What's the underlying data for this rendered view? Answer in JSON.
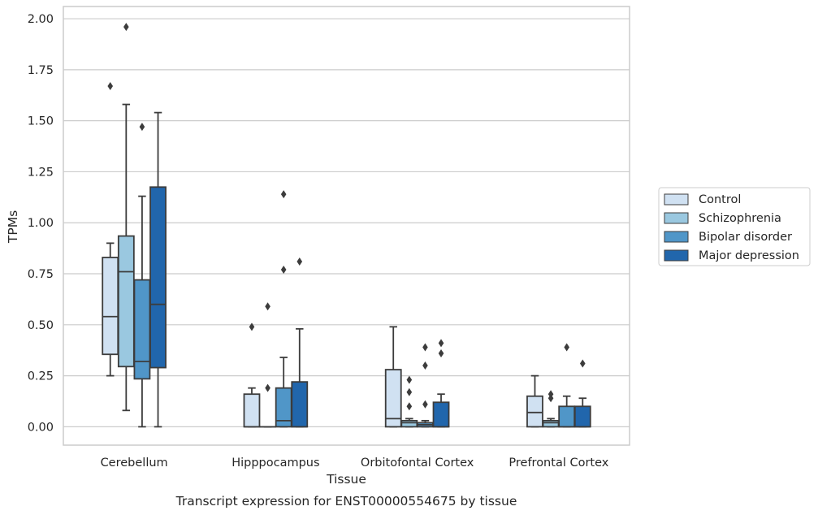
{
  "chart_data": {
    "type": "box",
    "xlabel": "Tissue",
    "ylabel": "TPMs",
    "caption": "Transcript expression for ENST00000554675 by tissue",
    "ylim": [
      -0.09,
      2.06
    ],
    "yticks": [
      0.0,
      0.25,
      0.5,
      0.75,
      1.0,
      1.25,
      1.5,
      1.75,
      2.0
    ],
    "ytick_labels": [
      "0.00",
      "0.25",
      "0.50",
      "0.75",
      "1.00",
      "1.25",
      "1.50",
      "1.75",
      "2.00"
    ],
    "grid": true,
    "legend_position": "right",
    "categories": [
      "Cerebellum",
      "Hipppocampus",
      "Orbitofontal Cortex",
      "Prefrontal Cortex"
    ],
    "series": [
      {
        "name": "Control",
        "color": "#d0e1f2",
        "boxes": [
          {
            "whislo": 0.25,
            "q1": 0.355,
            "med": 0.54,
            "q3": 0.83,
            "whishi": 0.9,
            "fliers": [
              1.67
            ]
          },
          {
            "whislo": 0.0,
            "q1": 0.0,
            "med": 0.0,
            "q3": 0.16,
            "whishi": 0.19,
            "fliers": [
              0.49
            ]
          },
          {
            "whislo": 0.0,
            "q1": 0.0,
            "med": 0.04,
            "q3": 0.28,
            "whishi": 0.49,
            "fliers": []
          },
          {
            "whislo": 0.0,
            "q1": 0.0,
            "med": 0.07,
            "q3": 0.15,
            "whishi": 0.25,
            "fliers": []
          }
        ]
      },
      {
        "name": "Schizophrenia",
        "color": "#9ac8e0",
        "boxes": [
          {
            "whislo": 0.08,
            "q1": 0.295,
            "med": 0.76,
            "q3": 0.935,
            "whishi": 1.58,
            "fliers": [
              1.96
            ]
          },
          {
            "whislo": 0.0,
            "q1": 0.0,
            "med": 0.0,
            "q3": 0.0,
            "whishi": 0.0,
            "fliers": [
              0.19,
              0.59
            ]
          },
          {
            "whislo": 0.0,
            "q1": 0.0,
            "med": 0.02,
            "q3": 0.03,
            "whishi": 0.04,
            "fliers": [
              0.1,
              0.17,
              0.23
            ]
          },
          {
            "whislo": 0.0,
            "q1": 0.0,
            "med": 0.02,
            "q3": 0.03,
            "whishi": 0.04,
            "fliers": [
              0.14,
              0.16
            ]
          }
        ]
      },
      {
        "name": "Bipolar disorder",
        "color": "#5096c8",
        "boxes": [
          {
            "whislo": 0.0,
            "q1": 0.235,
            "med": 0.32,
            "q3": 0.72,
            "whishi": 1.13,
            "fliers": [
              1.47
            ]
          },
          {
            "whislo": 0.0,
            "q1": 0.0,
            "med": 0.03,
            "q3": 0.19,
            "whishi": 0.34,
            "fliers": [
              0.77,
              1.14
            ]
          },
          {
            "whislo": 0.0,
            "q1": 0.0,
            "med": 0.01,
            "q3": 0.02,
            "whishi": 0.03,
            "fliers": [
              0.11,
              0.3,
              0.39
            ]
          },
          {
            "whislo": 0.0,
            "q1": 0.0,
            "med": 0.0,
            "q3": 0.1,
            "whishi": 0.15,
            "fliers": [
              0.39
            ]
          }
        ]
      },
      {
        "name": "Major depression",
        "color": "#2166ac",
        "boxes": [
          {
            "whislo": 0.0,
            "q1": 0.29,
            "med": 0.6,
            "q3": 1.175,
            "whishi": 1.54,
            "fliers": []
          },
          {
            "whislo": 0.0,
            "q1": 0.0,
            "med": 0.0,
            "q3": 0.22,
            "whishi": 0.48,
            "fliers": [
              0.81
            ]
          },
          {
            "whislo": 0.0,
            "q1": 0.0,
            "med": 0.0,
            "q3": 0.12,
            "whishi": 0.16,
            "fliers": [
              0.36,
              0.41
            ]
          },
          {
            "whislo": 0.0,
            "q1": 0.0,
            "med": 0.0,
            "q3": 0.1,
            "whishi": 0.14,
            "fliers": [
              0.31
            ]
          }
        ]
      }
    ]
  }
}
